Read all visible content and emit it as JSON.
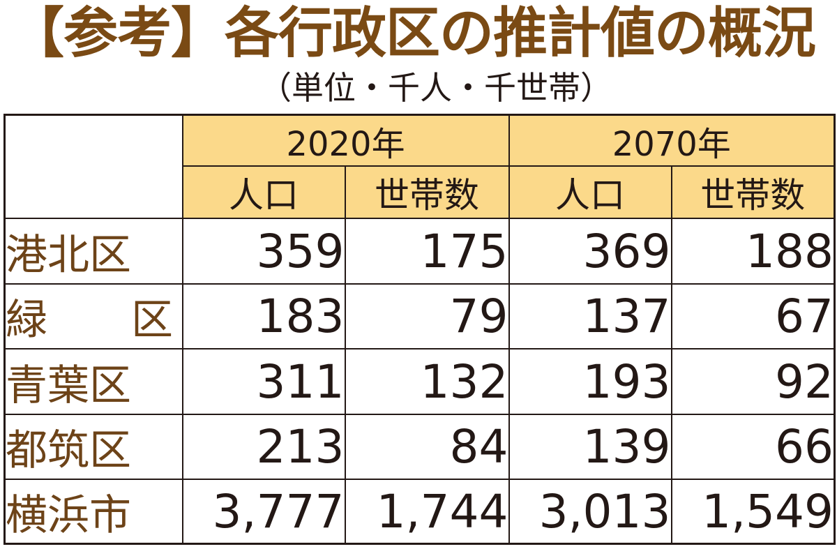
{
  "title": "【参考】各行政区の推計値の概況",
  "unit_note": "（単位・千人・千世帯）",
  "chart_data": {
    "type": "table",
    "title": "【参考】各行政区の推計値の概況",
    "unit": "（単位・千人・千世帯）",
    "year_headers": [
      "2020年",
      "2070年"
    ],
    "sub_headers": [
      "人口",
      "世帯数",
      "人口",
      "世帯数"
    ],
    "rows": [
      {
        "label": "港北区",
        "values": [
          "359",
          "175",
          "369",
          "188"
        ]
      },
      {
        "label": "緑　　区",
        "values": [
          "183",
          "79",
          "137",
          "67"
        ]
      },
      {
        "label": "青葉区",
        "values": [
          "311",
          "132",
          "193",
          "92"
        ]
      },
      {
        "label": "都筑区",
        "values": [
          "213",
          "84",
          "139",
          "66"
        ]
      },
      {
        "label": "横浜市",
        "values": [
          "3,777",
          "1,744",
          "3,013",
          "1,549"
        ]
      }
    ]
  },
  "colors": {
    "title": "#7a4a14",
    "header_fill": "#fbd98a",
    "row_label": "#6d4318",
    "text": "#231815"
  }
}
